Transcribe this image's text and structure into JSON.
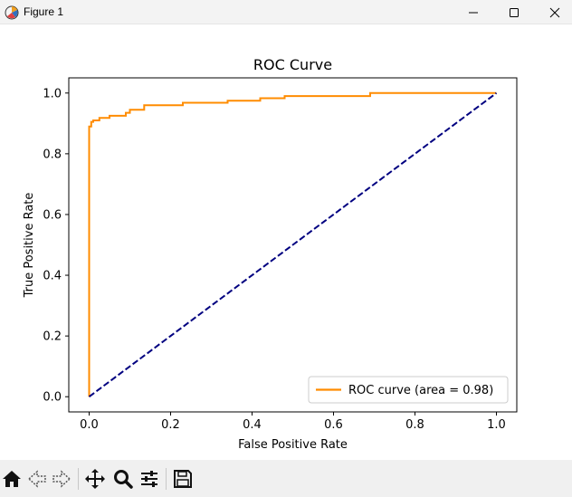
{
  "window": {
    "title": "Figure 1",
    "icon": "matplotlib-figure-icon",
    "controls": [
      "minimize-icon",
      "maximize-icon",
      "close-icon"
    ]
  },
  "toolbar": {
    "tools": [
      {
        "name": "home-button",
        "icon": "home-icon"
      },
      {
        "name": "back-button",
        "icon": "arrow-left-icon"
      },
      {
        "name": "forward-button",
        "icon": "arrow-right-icon"
      },
      {
        "name": "pan-button",
        "icon": "move-icon"
      },
      {
        "name": "zoom-button",
        "icon": "magnifier-icon"
      },
      {
        "name": "configure-subplots-button",
        "icon": "sliders-icon"
      },
      {
        "name": "save-button",
        "icon": "floppy-disk-icon"
      }
    ]
  },
  "chart_data": {
    "type": "line",
    "title": "ROC Curve",
    "xlabel": "False Positive Rate",
    "ylabel": "True Positive Rate",
    "xlim": [
      -0.05,
      1.05
    ],
    "ylim": [
      -0.05,
      1.05
    ],
    "xticks": [
      0.0,
      0.2,
      0.4,
      0.6,
      0.8,
      1.0
    ],
    "yticks": [
      0.0,
      0.2,
      0.4,
      0.6,
      0.8,
      1.0
    ],
    "xtick_labels": [
      "0.0",
      "0.2",
      "0.4",
      "0.6",
      "0.8",
      "1.0"
    ],
    "ytick_labels": [
      "0.0",
      "0.2",
      "0.4",
      "0.6",
      "0.8",
      "1.0"
    ],
    "grid": false,
    "legend": {
      "position": "lower right",
      "entries": [
        "ROC curve (area = 0.98)"
      ]
    },
    "series": [
      {
        "name": "ROC curve (area = 0.98)",
        "color": "#ff8c00",
        "style": "solid",
        "step": true,
        "points": [
          [
            0.0,
            0.0
          ],
          [
            0.0,
            0.89
          ],
          [
            0.005,
            0.89
          ],
          [
            0.005,
            0.905
          ],
          [
            0.01,
            0.905
          ],
          [
            0.01,
            0.91
          ],
          [
            0.025,
            0.91
          ],
          [
            0.025,
            0.918
          ],
          [
            0.05,
            0.918
          ],
          [
            0.05,
            0.925
          ],
          [
            0.09,
            0.925
          ],
          [
            0.09,
            0.935
          ],
          [
            0.1,
            0.935
          ],
          [
            0.1,
            0.945
          ],
          [
            0.135,
            0.945
          ],
          [
            0.135,
            0.96
          ],
          [
            0.23,
            0.96
          ],
          [
            0.23,
            0.968
          ],
          [
            0.34,
            0.968
          ],
          [
            0.34,
            0.975
          ],
          [
            0.42,
            0.975
          ],
          [
            0.42,
            0.983
          ],
          [
            0.48,
            0.983
          ],
          [
            0.48,
            0.99
          ],
          [
            0.69,
            0.99
          ],
          [
            0.69,
            1.0
          ],
          [
            1.0,
            1.0
          ]
        ]
      },
      {
        "name": "",
        "color": "#000080",
        "style": "dashed",
        "points": [
          [
            0.0,
            0.0
          ],
          [
            1.0,
            1.0
          ]
        ]
      }
    ]
  }
}
